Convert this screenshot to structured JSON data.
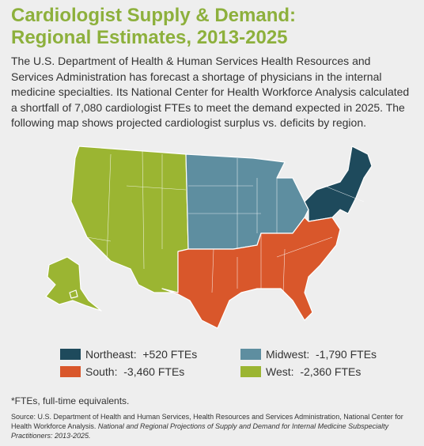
{
  "header": {
    "title_lines": [
      "Cardiologist Supply & Demand:",
      "Regional Estimates, 2013-2025"
    ]
  },
  "intro": "The U.S. Department of Health & Human Services Health Resources and Services Administration has forecast a shortage of physicians in the internal medicine specialties. Its National Center for Health Workforce Analysis calculated a shortfall of 7,080 cardiologist FTEs to meet the demand expected in 2025. The following map shows projected cardiologist surplus vs. deficits by region.",
  "legend": [
    {
      "region": "Northeast:",
      "value": "+520 FTEs",
      "color": "#1e4a5c"
    },
    {
      "region": "Midwest:",
      "value": "-1,790 FTEs",
      "color": "#5e8ea0"
    },
    {
      "region": "South:",
      "value": "-3,460 FTEs",
      "color": "#d9572b"
    },
    {
      "region": "West:",
      "value": "-2,360 FTEs",
      "color": "#9bb532"
    }
  ],
  "footnote": "*FTEs, full-time equivalents.",
  "source": {
    "text": "Source: U.S. Department of Health and Human Services, Health Resources and Services Administration, National Center for Health Workforce Analysis.",
    "citation": "National and Regional Projections of Supply and Demand for Internal Medicine Subspecialty Practitioners: 2013-2025."
  }
}
